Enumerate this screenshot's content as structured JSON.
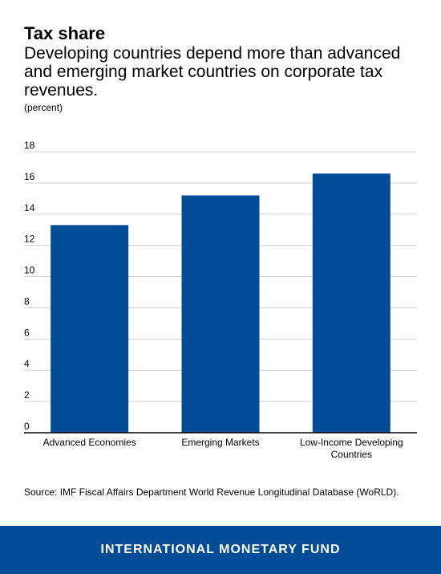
{
  "header": {
    "title": "Tax share",
    "subtitle": "Developing countries depend more than advanced and emerging market countries on corporate tax revenues.",
    "unit": "(percent)"
  },
  "chart_data": {
    "type": "bar",
    "categories": [
      [
        "Advanced Economies"
      ],
      [
        "Emerging Markets"
      ],
      [
        "Low-Income Developing",
        "Countries"
      ]
    ],
    "values": [
      13.3,
      15.2,
      16.6
    ],
    "ylim": [
      0,
      18
    ],
    "yticks": [
      0,
      2,
      4,
      6,
      8,
      10,
      12,
      14,
      16,
      18
    ],
    "grid": true,
    "bar_color": "#004c97",
    "xlabel": "",
    "ylabel": ""
  },
  "source": "Source: IMF Fiscal Affairs Department World Revenue Longitudinal Database (WoRLD).",
  "footer": {
    "text": "INTERNATIONAL MONETARY FUND",
    "color": "#004c97"
  }
}
